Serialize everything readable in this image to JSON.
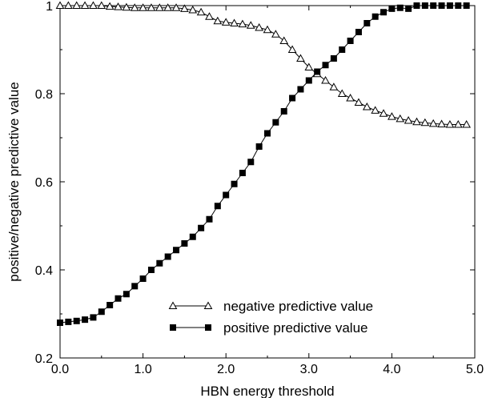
{
  "chart_data": {
    "type": "line",
    "xlabel": "HBN energy threshold",
    "ylabel": "positive/negative predictive value",
    "xlim": [
      0,
      5
    ],
    "ylim": [
      0.2,
      1.0
    ],
    "x_ticks": [
      "0.0",
      "1.0",
      "2.0",
      "3.0",
      "4.0",
      "5.0"
    ],
    "y_ticks": [
      "0.2",
      "0.4",
      "0.6",
      "0.8",
      "1"
    ],
    "grid": false,
    "legend_position": "bottom-center",
    "series": [
      {
        "name": "negative predictive value",
        "marker": "open-triangle",
        "color": "#000000",
        "x": [
          0.0,
          0.1,
          0.2,
          0.3,
          0.4,
          0.5,
          0.6,
          0.7,
          0.8,
          0.9,
          1.0,
          1.1,
          1.2,
          1.3,
          1.4,
          1.5,
          1.6,
          1.7,
          1.8,
          1.9,
          2.0,
          2.1,
          2.2,
          2.3,
          2.4,
          2.5,
          2.6,
          2.7,
          2.8,
          2.9,
          3.0,
          3.1,
          3.2,
          3.3,
          3.4,
          3.5,
          3.6,
          3.7,
          3.8,
          3.9,
          4.0,
          4.1,
          4.2,
          4.3,
          4.4,
          4.5,
          4.6,
          4.7,
          4.8,
          4.9
        ],
        "values": [
          1.0,
          1.0,
          1.0,
          1.0,
          1.0,
          1.0,
          0.998,
          0.997,
          0.996,
          0.995,
          0.995,
          0.995,
          0.995,
          0.995,
          0.995,
          0.993,
          0.99,
          0.985,
          0.975,
          0.965,
          0.962,
          0.96,
          0.958,
          0.955,
          0.95,
          0.945,
          0.935,
          0.92,
          0.9,
          0.88,
          0.86,
          0.845,
          0.83,
          0.815,
          0.8,
          0.79,
          0.78,
          0.77,
          0.762,
          0.755,
          0.748,
          0.743,
          0.739,
          0.736,
          0.734,
          0.732,
          0.731,
          0.73,
          0.73,
          0.73
        ]
      },
      {
        "name": "positive predictive value",
        "marker": "filled-square",
        "color": "#000000",
        "x": [
          0.0,
          0.1,
          0.2,
          0.3,
          0.4,
          0.5,
          0.6,
          0.7,
          0.8,
          0.9,
          1.0,
          1.1,
          1.2,
          1.3,
          1.4,
          1.5,
          1.6,
          1.7,
          1.8,
          1.9,
          2.0,
          2.1,
          2.2,
          2.3,
          2.4,
          2.5,
          2.6,
          2.7,
          2.8,
          2.9,
          3.0,
          3.1,
          3.2,
          3.3,
          3.4,
          3.5,
          3.6,
          3.7,
          3.8,
          3.9,
          4.0,
          4.1,
          4.2,
          4.3,
          4.4,
          4.5,
          4.6,
          4.7,
          4.8,
          4.9
        ],
        "values": [
          0.28,
          0.282,
          0.284,
          0.287,
          0.292,
          0.305,
          0.32,
          0.335,
          0.345,
          0.363,
          0.38,
          0.4,
          0.415,
          0.43,
          0.445,
          0.46,
          0.475,
          0.495,
          0.515,
          0.545,
          0.57,
          0.595,
          0.62,
          0.645,
          0.68,
          0.71,
          0.735,
          0.76,
          0.79,
          0.81,
          0.83,
          0.85,
          0.865,
          0.88,
          0.9,
          0.92,
          0.94,
          0.96,
          0.975,
          0.985,
          0.993,
          0.995,
          0.993,
          1.0,
          1.0,
          1.0,
          1.0,
          1.0,
          1.0,
          1.0
        ]
      }
    ]
  }
}
